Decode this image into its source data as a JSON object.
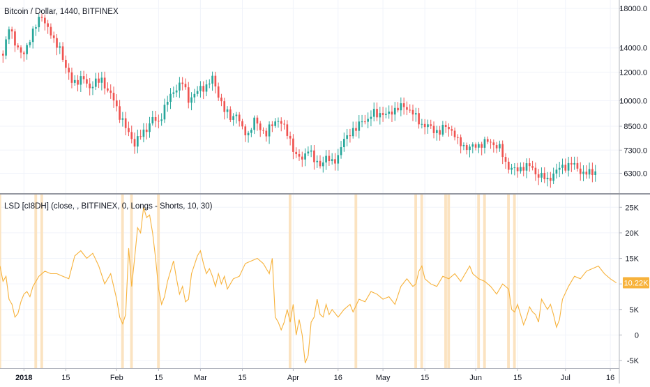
{
  "chart_data": [
    {
      "type": "candlestick",
      "title": "Bitcoin / Dollar, 1440, BITFINEX",
      "y_ticks": [
        18000,
        14000,
        12000,
        10000,
        8500,
        7300,
        6300
      ],
      "y_tick_labels": [
        "18000.0",
        "14000.0",
        "12000.0",
        "10000.0",
        "8500.0",
        "7300.0",
        "6300.0"
      ],
      "y_scale": "log",
      "ylim": [
        5550,
        19000
      ],
      "x_tick_labels": [
        "2018",
        "15",
        "Feb",
        "15",
        "Mar",
        "15",
        "Apr",
        "16",
        "May",
        "15",
        "Jun",
        "15",
        "Jul",
        "16"
      ],
      "x_tick_days": [
        0,
        14,
        31,
        45,
        59,
        73,
        90,
        105,
        120,
        134,
        151,
        165,
        181,
        196
      ],
      "x_range_days": [
        -8,
        199
      ],
      "up_color": "#26a69a",
      "down_color": "#ef5350",
      "close_anchors": [
        [
          -7,
          13500
        ],
        [
          -5,
          15800
        ],
        [
          -2,
          14000
        ],
        [
          0,
          13300
        ],
        [
          3,
          15700
        ],
        [
          6,
          17100
        ],
        [
          8,
          16000
        ],
        [
          10,
          14500
        ],
        [
          12,
          14100
        ],
        [
          14,
          12200
        ],
        [
          16,
          11400
        ],
        [
          18,
          11300
        ],
        [
          20,
          11500
        ],
        [
          22,
          10900
        ],
        [
          24,
          11200
        ],
        [
          26,
          11500
        ],
        [
          28,
          10600
        ],
        [
          30,
          10100
        ],
        [
          32,
          9100
        ],
        [
          34,
          8400
        ],
        [
          36,
          7900
        ],
        [
          37,
          7600
        ],
        [
          39,
          8000
        ],
        [
          41,
          8400
        ],
        [
          43,
          8900
        ],
        [
          45,
          8700
        ],
        [
          47,
          9600
        ],
        [
          49,
          10300
        ],
        [
          51,
          10900
        ],
        [
          53,
          11200
        ],
        [
          55,
          10100
        ],
        [
          57,
          10400
        ],
        [
          59,
          10800
        ],
        [
          61,
          11000
        ],
        [
          63,
          11500
        ],
        [
          65,
          10400
        ],
        [
          67,
          9400
        ],
        [
          69,
          9000
        ],
        [
          71,
          9200
        ],
        [
          73,
          8300
        ],
        [
          75,
          8100
        ],
        [
          77,
          8800
        ],
        [
          79,
          8400
        ],
        [
          81,
          8100
        ],
        [
          83,
          8600
        ],
        [
          85,
          8900
        ],
        [
          87,
          8400
        ],
        [
          89,
          7800
        ],
        [
          91,
          7000
        ],
        [
          93,
          6900
        ],
        [
          95,
          7400
        ],
        [
          97,
          6800
        ],
        [
          99,
          6700
        ],
        [
          101,
          6900
        ],
        [
          103,
          6800
        ],
        [
          105,
          7000
        ],
        [
          107,
          7800
        ],
        [
          109,
          8200
        ],
        [
          111,
          8300
        ],
        [
          113,
          8900
        ],
        [
          115,
          8800
        ],
        [
          117,
          9300
        ],
        [
          119,
          9200
        ],
        [
          121,
          9100
        ],
        [
          123,
          9400
        ],
        [
          125,
          9500
        ],
        [
          127,
          9700
        ],
        [
          129,
          9400
        ],
        [
          131,
          9000
        ],
        [
          133,
          8600
        ],
        [
          135,
          8500
        ],
        [
          137,
          8300
        ],
        [
          139,
          8200
        ],
        [
          141,
          8500
        ],
        [
          143,
          8300
        ],
        [
          145,
          7700
        ],
        [
          147,
          7500
        ],
        [
          149,
          7400
        ],
        [
          151,
          7500
        ],
        [
          153,
          7600
        ],
        [
          155,
          7700
        ],
        [
          157,
          7600
        ],
        [
          159,
          7400
        ],
        [
          161,
          6700
        ],
        [
          163,
          6500
        ],
        [
          165,
          6400
        ],
        [
          167,
          6600
        ],
        [
          169,
          6600
        ],
        [
          171,
          6300
        ],
        [
          173,
          6200
        ],
        [
          175,
          6000
        ],
        [
          177,
          6300
        ],
        [
          179,
          6500
        ],
        [
          181,
          6600
        ],
        [
          183,
          6700
        ],
        [
          185,
          6500
        ],
        [
          187,
          6300
        ],
        [
          189,
          6300
        ],
        [
          191,
          6400
        ]
      ]
    },
    {
      "type": "line",
      "title": "LSD [cI8DH] (close, , BITFINEX, 0, Longs - Shorts, 10, 30)",
      "y_ticks": [
        25000,
        20000,
        15000,
        10000,
        5000,
        0,
        -5000
      ],
      "y_tick_labels": [
        "25K",
        "20K",
        "15K",
        "10K",
        "5K",
        "0",
        "-5K"
      ],
      "ylim": [
        -6500,
        27500
      ],
      "line_color": "#f7b23b",
      "last_value_label": "10.22K",
      "last_value": 10220,
      "highlight_color": "#fbe3c1",
      "highlight_days": [
        -8,
        4,
        6,
        33,
        36,
        45,
        89,
        111,
        131,
        133,
        141,
        142,
        152,
        154,
        162,
        164
      ],
      "anchors": [
        [
          -8,
          13500
        ],
        [
          -7,
          10500
        ],
        [
          -6,
          11500
        ],
        [
          -5,
          7000
        ],
        [
          -4,
          6000
        ],
        [
          -3,
          3500
        ],
        [
          -2,
          4200
        ],
        [
          -1,
          6500
        ],
        [
          0,
          8000
        ],
        [
          1,
          8500
        ],
        [
          2,
          7500
        ],
        [
          3,
          9500
        ],
        [
          5,
          11500
        ],
        [
          6,
          12000
        ],
        [
          7,
          12500
        ],
        [
          9,
          12000
        ],
        [
          11,
          12000
        ],
        [
          13,
          11500
        ],
        [
          15,
          11000
        ],
        [
          17,
          15500
        ],
        [
          19,
          16500
        ],
        [
          21,
          15000
        ],
        [
          23,
          16000
        ],
        [
          25,
          13500
        ],
        [
          27,
          10000
        ],
        [
          29,
          12000
        ],
        [
          31,
          7000
        ],
        [
          32,
          3500
        ],
        [
          33,
          2200
        ],
        [
          34,
          4000
        ],
        [
          35,
          17000
        ],
        [
          36,
          9500
        ],
        [
          37,
          15000
        ],
        [
          38,
          21000
        ],
        [
          39,
          20000
        ],
        [
          40,
          25000
        ],
        [
          41,
          23000
        ],
        [
          42,
          23500
        ],
        [
          43,
          20000
        ],
        [
          44,
          15000
        ],
        [
          45,
          9000
        ],
        [
          46,
          6000
        ],
        [
          47,
          7500
        ],
        [
          48,
          10500
        ],
        [
          50,
          14500
        ],
        [
          51,
          11000
        ],
        [
          52,
          8000
        ],
        [
          53,
          9500
        ],
        [
          54,
          6500
        ],
        [
          55,
          7000
        ],
        [
          56,
          12000
        ],
        [
          58,
          15500
        ],
        [
          59,
          16500
        ],
        [
          60,
          14000
        ],
        [
          61,
          12000
        ],
        [
          62,
          13000
        ],
        [
          63,
          11500
        ],
        [
          64,
          9500
        ],
        [
          65,
          12000
        ],
        [
          66,
          10000
        ],
        [
          67,
          11500
        ],
        [
          68,
          9000
        ],
        [
          70,
          11000
        ],
        [
          72,
          11500
        ],
        [
          74,
          14000
        ],
        [
          76,
          14500
        ],
        [
          78,
          15000
        ],
        [
          80,
          14000
        ],
        [
          82,
          12000
        ],
        [
          83,
          15000
        ],
        [
          84,
          3500
        ],
        [
          85,
          2500
        ],
        [
          86,
          1000
        ],
        [
          87,
          2500
        ],
        [
          88,
          5000
        ],
        [
          89,
          2500
        ],
        [
          90,
          6000
        ],
        [
          91,
          0
        ],
        [
          92,
          3000
        ],
        [
          93,
          0
        ],
        [
          94,
          -5500
        ],
        [
          95,
          -4000
        ],
        [
          96,
          2500
        ],
        [
          97,
          3500
        ],
        [
          98,
          7000
        ],
        [
          99,
          4000
        ],
        [
          100,
          3500
        ],
        [
          101,
          6000
        ],
        [
          102,
          4000
        ],
        [
          103,
          5000
        ],
        [
          105,
          3500
        ],
        [
          107,
          5000
        ],
        [
          109,
          6000
        ],
        [
          110,
          4500
        ],
        [
          112,
          7000
        ],
        [
          114,
          6500
        ],
        [
          116,
          8500
        ],
        [
          118,
          8000
        ],
        [
          120,
          7000
        ],
        [
          122,
          7500
        ],
        [
          124,
          6000
        ],
        [
          126,
          9500
        ],
        [
          128,
          11000
        ],
        [
          130,
          9500
        ],
        [
          131,
          10000
        ],
        [
          132,
          12500
        ],
        [
          133,
          13500
        ],
        [
          134,
          11000
        ],
        [
          136,
          10000
        ],
        [
          138,
          9500
        ],
        [
          140,
          11500
        ],
        [
          142,
          11000
        ],
        [
          144,
          12000
        ],
        [
          146,
          10500
        ],
        [
          148,
          12500
        ],
        [
          149,
          13500
        ],
        [
          150,
          12000
        ],
        [
          152,
          11000
        ],
        [
          154,
          10500
        ],
        [
          156,
          9500
        ],
        [
          158,
          8000
        ],
        [
          160,
          10000
        ],
        [
          162,
          9000
        ],
        [
          163,
          5000
        ],
        [
          164,
          4500
        ],
        [
          165,
          6000
        ],
        [
          166,
          4000
        ],
        [
          167,
          2000
        ],
        [
          168,
          3500
        ],
        [
          169,
          5500
        ],
        [
          170,
          4500
        ],
        [
          171,
          4000
        ],
        [
          172,
          2500
        ],
        [
          173,
          7000
        ],
        [
          174,
          6000
        ],
        [
          175,
          5000
        ],
        [
          176,
          6000
        ],
        [
          177,
          4000
        ],
        [
          178,
          1500
        ],
        [
          179,
          3000
        ],
        [
          180,
          7000
        ],
        [
          182,
          9500
        ],
        [
          184,
          11500
        ],
        [
          186,
          11000
        ],
        [
          188,
          12500
        ],
        [
          190,
          13000
        ],
        [
          192,
          13500
        ],
        [
          194,
          12000
        ],
        [
          196,
          11000
        ],
        [
          198,
          10220
        ]
      ]
    }
  ]
}
